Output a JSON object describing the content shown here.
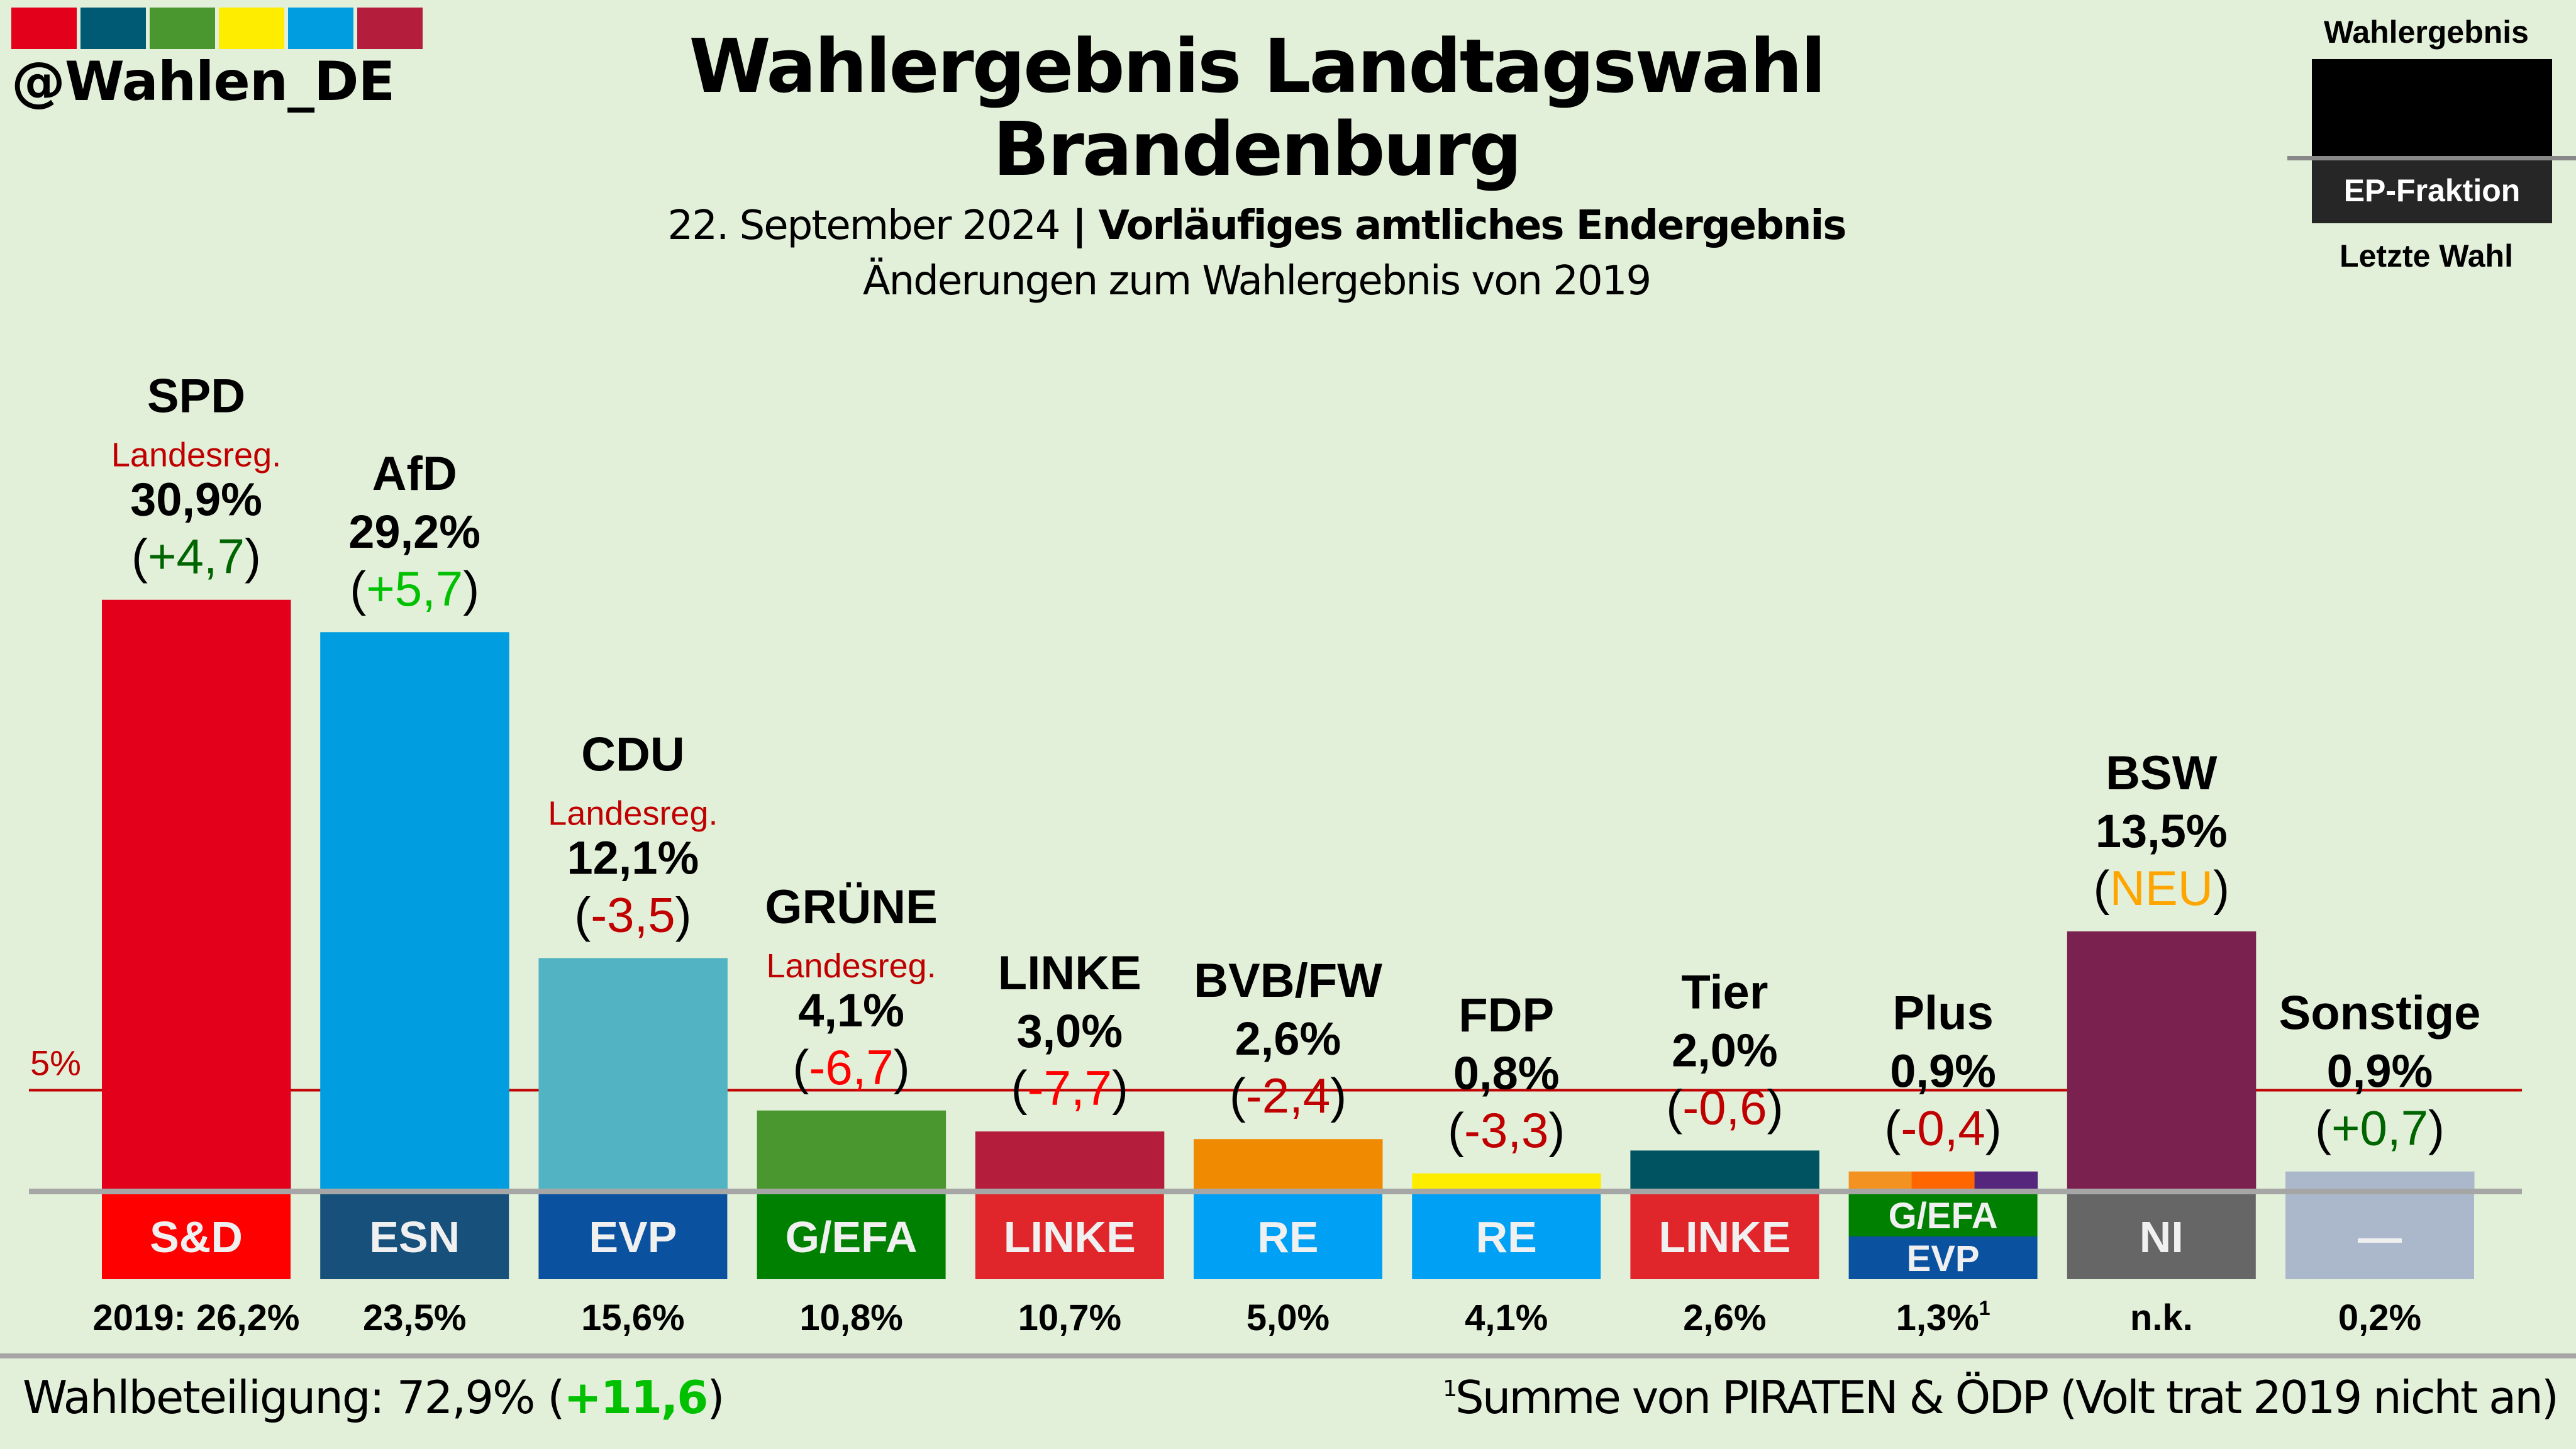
{
  "branding": {
    "handle": "@Wahlen_DE",
    "logo_colors": [
      "#e2001a",
      "#005a74",
      "#4a962f",
      "#ffed00",
      "#009ee0",
      "#b41d3c"
    ]
  },
  "header": {
    "title_line1": "Wahlergebnis Landtagswahl",
    "title_line2": "Brandenburg",
    "date": "22. September 2024",
    "separator": " | ",
    "status": "Vorläufiges amtliches Endergebnis",
    "subtitle": "Änderungen zum Wahlergebnis von 2019"
  },
  "legend": {
    "top_label": "Wahlergebnis",
    "middle_label": "EP-Fraktion",
    "bottom_label": "Letzte Wahl"
  },
  "chart_data": {
    "type": "bar",
    "title": "Wahlergebnis Landtagswahl Brandenburg",
    "subtitle": "Änderungen zum Wahlergebnis von 2019",
    "xlabel": "",
    "ylabel": "",
    "unit": "%",
    "threshold": {
      "value": 5,
      "label": "5%",
      "color": "#c00000"
    },
    "ylim": [
      0,
      32
    ],
    "grid": false,
    "categories": [
      "SPD",
      "AfD",
      "CDU",
      "GRÜNE",
      "LINKE",
      "BVB/FW",
      "FDP",
      "Tier",
      "Plus",
      "BSW",
      "Sonstige"
    ],
    "values": [
      30.9,
      29.2,
      12.1,
      4.1,
      3.0,
      2.6,
      0.8,
      2.0,
      0.9,
      13.5,
      0.9
    ],
    "bars": [
      {
        "party": "SPD",
        "value": 30.9,
        "value_label": "30,9%",
        "change": "+4,7",
        "change_color": "#006400",
        "note": "Landesreg.",
        "colors": [
          "#e2001a"
        ],
        "ep_groups": [
          {
            "label": "S&D",
            "color": "#ff0000"
          }
        ],
        "prev_label": "2019: 26,2%"
      },
      {
        "party": "AfD",
        "value": 29.2,
        "value_label": "29,2%",
        "change": "+5,7",
        "change_color": "#00c000",
        "note": "",
        "colors": [
          "#009ee0"
        ],
        "ep_groups": [
          {
            "label": "ESN",
            "color": "#17507a"
          }
        ],
        "prev_label": "23,5%"
      },
      {
        "party": "CDU",
        "value": 12.1,
        "value_label": "12,1%",
        "change": "-3,5",
        "change_color": "#c00000",
        "note": "Landesreg.",
        "colors": [
          "#52b4c2"
        ],
        "ep_groups": [
          {
            "label": "EVP",
            "color": "#0a51a0"
          }
        ],
        "prev_label": "15,6%"
      },
      {
        "party": "GRÜNE",
        "value": 4.1,
        "value_label": "4,1%",
        "change": "-6,7",
        "change_color": "#ff0000",
        "note": "Landesreg.",
        "colors": [
          "#4a962f"
        ],
        "ep_groups": [
          {
            "label": "G/EFA",
            "color": "#008000"
          }
        ],
        "prev_label": "10,8%"
      },
      {
        "party": "LINKE",
        "value": 3.0,
        "value_label": "3,0%",
        "change": "-7,7",
        "change_color": "#ff0000",
        "note": "",
        "colors": [
          "#b41d3c"
        ],
        "ep_groups": [
          {
            "label": "LINKE",
            "color": "#e1262b"
          }
        ],
        "prev_label": "10,7%"
      },
      {
        "party": "BVB/FW",
        "value": 2.6,
        "value_label": "2,6%",
        "change": "-2,4",
        "change_color": "#c00000",
        "note": "",
        "colors": [
          "#f08a00"
        ],
        "ep_groups": [
          {
            "label": "RE",
            "color": "#00a0f5"
          }
        ],
        "prev_label": "5,0%"
      },
      {
        "party": "FDP",
        "value": 0.8,
        "value_label": "0,8%",
        "change": "-3,3",
        "change_color": "#c00000",
        "note": "",
        "colors": [
          "#ffed00"
        ],
        "ep_groups": [
          {
            "label": "RE",
            "color": "#00a0f5"
          }
        ],
        "prev_label": "4,1%"
      },
      {
        "party": "Tier",
        "value": 2.0,
        "value_label": "2,0%",
        "change": "-0,6",
        "change_color": "#c00000",
        "note": "",
        "colors": [
          "#005462"
        ],
        "ep_groups": [
          {
            "label": "LINKE",
            "color": "#e1262b"
          }
        ],
        "prev_label": "2,6%"
      },
      {
        "party": "Plus",
        "value": 0.9,
        "value_label": "0,9%",
        "change": "-0,4",
        "change_color": "#c00000",
        "note": "",
        "colors": [
          "#f39221",
          "#ff6600",
          "#56267d"
        ],
        "ep_groups": [
          {
            "label": "G/EFA",
            "color": "#008000"
          },
          {
            "label": "EVP",
            "color": "#0a51a0"
          }
        ],
        "prev_label": "1,3%",
        "prev_footnote": "1"
      },
      {
        "party": "BSW",
        "value": 13.5,
        "value_label": "13,5%",
        "change": "NEU",
        "change_color": "#ffa500",
        "note": "",
        "colors": [
          "#7a2150"
        ],
        "ep_groups": [
          {
            "label": "NI",
            "color": "#666666"
          }
        ],
        "prev_label": "n.k."
      },
      {
        "party": "Sonstige",
        "value": 0.9,
        "value_label": "0,9%",
        "change": "+0,7",
        "change_color": "#006400",
        "note": "",
        "colors": [
          "#abb8cb"
        ],
        "ep_groups": [
          {
            "label": "—",
            "color": "#abb8cb"
          }
        ],
        "prev_label": "0,2%"
      }
    ]
  },
  "footer": {
    "turnout_label": "Wahlbeteiligung: 72,9% (",
    "turnout_change": "+11,6",
    "turnout_close": ")",
    "footnote_mark": "1",
    "footnote_text": "Summe von PIRATEN & ÖDP (Volt trat 2019 nicht an)"
  }
}
